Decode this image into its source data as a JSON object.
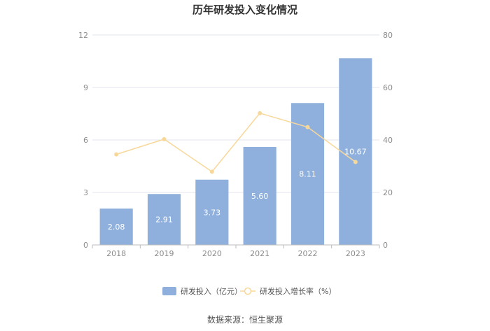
{
  "chart_data": {
    "type": "bar",
    "title": "历年研发投入变化情况",
    "categories": [
      "2018",
      "2019",
      "2020",
      "2021",
      "2022",
      "2023"
    ],
    "series": [
      {
        "name": "研发投入（亿元）",
        "type": "bar",
        "axis": "left",
        "values": [
          2.08,
          2.91,
          3.73,
          5.6,
          8.11,
          10.67
        ],
        "labels": [
          "2.08",
          "2.91",
          "3.73",
          "5.60",
          "8.11",
          "10.67"
        ]
      },
      {
        "name": "研发投入增长率（%）",
        "type": "line",
        "axis": "right",
        "values": [
          34.5,
          40.3,
          27.9,
          50.2,
          44.9,
          31.6
        ]
      }
    ],
    "y_left": {
      "ylim": [
        0,
        12
      ],
      "ticks": [
        "0",
        "3",
        "6",
        "9",
        "12"
      ]
    },
    "y_right": {
      "ylim": [
        0,
        80
      ],
      "ticks": [
        "0",
        "20",
        "40",
        "60",
        "80"
      ]
    },
    "grid": true,
    "legend_position": "bottom"
  },
  "colors": {
    "bar": "#8fb0dc",
    "line": "#f8d89a",
    "grid": "#e3e6ee",
    "axis": "#bcbcbc"
  },
  "source": "数据来源：恒生聚源"
}
